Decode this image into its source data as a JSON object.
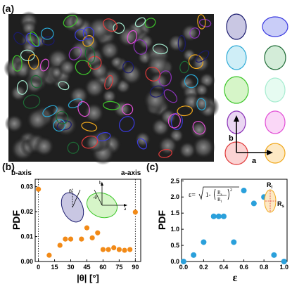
{
  "figure": {
    "panel_a_label": "(a)",
    "panel_b_label": "(b)",
    "panel_c_label": "(c)"
  },
  "panel_a": {
    "axis_b_label": "b",
    "axis_a_label": "a",
    "ellipse_swatches": [
      {
        "fill": "#c9c7e3",
        "stroke": "#1a1a6e"
      },
      {
        "fill": "#c9cdf8",
        "stroke": "#3b3be0"
      },
      {
        "fill": "#cfeef7",
        "stroke": "#2aa9d6"
      },
      {
        "fill": "#d3ecd8",
        "stroke": "#1d6b35"
      },
      {
        "fill": "#d6f5c8",
        "stroke": "#3ec72b"
      },
      {
        "fill": "#e6fbf1",
        "stroke": "#a6ecd0"
      },
      {
        "fill": "#ead6f2",
        "stroke": "#8b33b8"
      },
      {
        "fill": "#fad7f7",
        "stroke": "#e24fd6"
      },
      {
        "fill": "#fbd3d3",
        "stroke": "#e03a3a"
      },
      {
        "fill": "#fde9c4",
        "stroke": "#f0a81c"
      }
    ]
  },
  "panel_b": {
    "inset_left_label": "b-axis",
    "inset_right_label": "a-axis",
    "inset_theta": "θ",
    "inset_neg_theta": "-θ",
    "inset_b": "b",
    "inset_a": "a",
    "marker_color": "#f28a17"
  },
  "panel_c": {
    "formula_lhs": "ε=",
    "formula_rhs": "1-(R_s/R_l)^2",
    "formula_num": "R",
    "formula_num_sub": "s",
    "formula_den": "R",
    "formula_den_sub": "l",
    "inset_rl": "R",
    "inset_rl_sub": "l",
    "inset_rs": "R",
    "inset_rs_sub": "s",
    "marker_color": "#2aa0db"
  },
  "chart_data": [
    {
      "type": "scatter",
      "xlabel": "|θ| [°]",
      "ylabel": "PDF",
      "xlim": [
        -3,
        95
      ],
      "ylim": [
        0,
        0.033
      ],
      "xticks": [
        0,
        15,
        30,
        45,
        60,
        75,
        90
      ],
      "yticks": [
        0.0,
        0.01,
        0.02,
        0.03
      ],
      "ytick_labels": [
        "0.00",
        "0.01",
        "0.02",
        "0.03"
      ],
      "x": [
        0,
        10,
        20,
        25,
        30,
        40,
        45,
        50,
        55,
        60,
        65,
        70,
        75,
        80,
        85,
        90
      ],
      "y": [
        0.029,
        0.0025,
        0.0065,
        0.009,
        0.009,
        0.009,
        0.0135,
        0.0095,
        0.0115,
        0.0048,
        0.0048,
        0.0055,
        0.0048,
        0.0045,
        0.0048,
        0.0198
      ],
      "vlines": [
        0,
        90
      ],
      "legend": "none"
    },
    {
      "type": "scatter",
      "xlabel": "ε",
      "ylabel": "PDF",
      "xlim": [
        -0.02,
        1.03
      ],
      "ylim": [
        0,
        2.55
      ],
      "xticks": [
        0.0,
        0.2,
        0.4,
        0.6,
        0.8,
        1.0
      ],
      "xtick_labels": [
        "0.0",
        "0.2",
        "0.4",
        "0.6",
        "0.8",
        "1.0"
      ],
      "yticks": [
        0.0,
        0.5,
        1.0,
        1.5,
        2.0,
        2.5
      ],
      "ytick_labels": [
        "0.0",
        "0.5",
        "1.0",
        "1.5",
        "2.0",
        "2.5"
      ],
      "x": [
        0.0,
        0.1,
        0.2,
        0.3,
        0.35,
        0.4,
        0.5,
        0.6,
        0.7,
        0.8,
        0.9,
        1.0
      ],
      "y": [
        0.0,
        0.2,
        0.6,
        1.4,
        1.4,
        1.4,
        0.6,
        2.2,
        1.8,
        2.0,
        0.2,
        0.0
      ],
      "legend": "none"
    }
  ]
}
